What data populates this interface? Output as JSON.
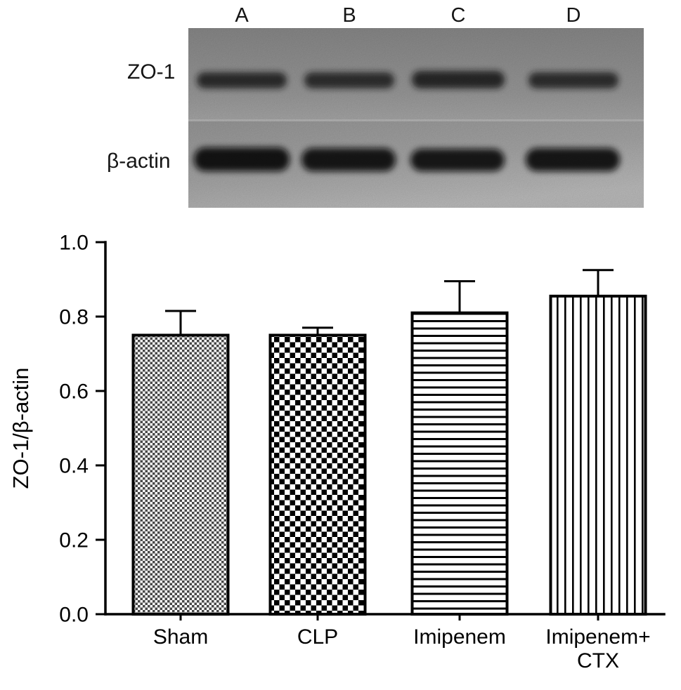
{
  "blot": {
    "lane_labels": [
      "A",
      "B",
      "C",
      "D"
    ],
    "row_labels": {
      "zo1": "ZO-1",
      "actin": "β-actin"
    }
  },
  "chart_data": {
    "type": "bar",
    "title": "",
    "xlabel": "",
    "ylabel": "ZO-1/β-actin",
    "ylim": [
      0.0,
      1.0
    ],
    "ytick_labels": [
      "0.0",
      "0.2",
      "0.4",
      "0.6",
      "0.8",
      "1.0"
    ],
    "categories": [
      "Sham",
      "CLP",
      "Imipenem",
      "Imipenem+\nCTX"
    ],
    "values": [
      0.75,
      0.75,
      0.81,
      0.855
    ],
    "errors_sd": [
      0.065,
      0.02,
      0.085,
      0.07
    ],
    "bar_patterns": [
      "fine-checker",
      "checkerboard",
      "horizontal-lines",
      "vertical-lines"
    ],
    "bar_edge_color": "#000000",
    "grid": false,
    "legend": false
  }
}
